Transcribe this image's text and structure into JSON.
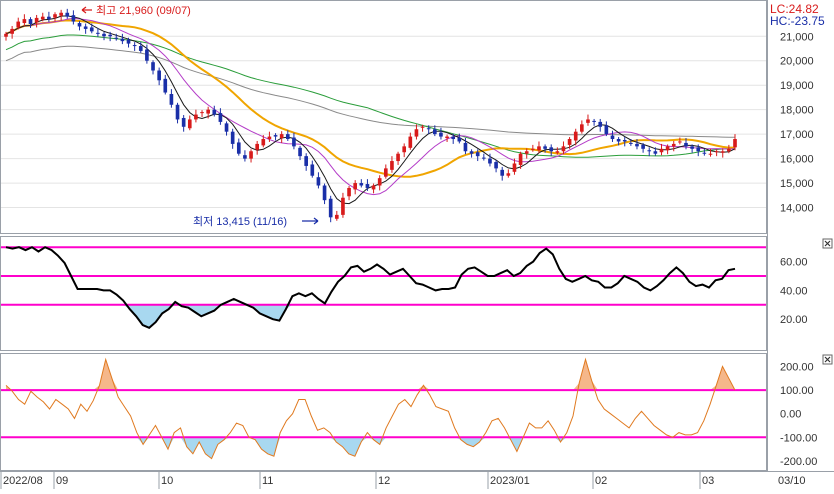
{
  "colors": {
    "up": "#d81b1b",
    "down": "#1a2fa8",
    "ma5": "#1a1a1a",
    "ma10": "#b43cc8",
    "ma20": "#f0a500",
    "ma60": "#2a9d3a",
    "ma120": "#8a8a8a",
    "band": "#ff00cc",
    "rsi_line": "#000000",
    "rsi_fill": "#a8d8f0",
    "cci_line": "#e07a20",
    "cci_fill_up": "#f5b78a",
    "cci_fill_down": "#a8d8f0",
    "lc": "#d81b1b",
    "hc": "#1a2fa8",
    "grid": "#e4e4e4"
  },
  "price_panel": {
    "lc_label": "LC:24.82",
    "hc_label": "HC:-23.75",
    "high_annotation": "최고 21,960 (09/07)",
    "low_annotation": "최저 13,415 (11/16)",
    "y_ticks": [
      "21,000",
      "20,000",
      "19,000",
      "18,000",
      "17,000",
      "16,000",
      "15,000",
      "14,000"
    ]
  },
  "rsi_panel": {
    "y_ticks": [
      "60.00",
      "40.00",
      "20.00"
    ],
    "close_icon": "x-icon"
  },
  "cci_panel": {
    "y_ticks": [
      "200.00",
      "100.00",
      "0.00",
      "-100.00",
      "-200.00"
    ],
    "close_icon": "x-icon"
  },
  "x_axis": {
    "labels": [
      "2022/08",
      "09",
      "10",
      "11",
      "12",
      "2023/01",
      "02",
      "03",
      "03/10"
    ]
  },
  "chart_data": [
    {
      "type": "candlestick",
      "panel": "price",
      "ylim": [
        13000,
        22400
      ],
      "high": {
        "value": 21960,
        "date": "09/07"
      },
      "low": {
        "value": 13415,
        "date": "11/16"
      },
      "close": [
        21100,
        21300,
        21600,
        21700,
        21500,
        21750,
        21800,
        21700,
        21900,
        21960,
        21800,
        21600,
        21400,
        21300,
        21200,
        21100,
        21000,
        21000,
        20900,
        20800,
        20700,
        20600,
        20400,
        20000,
        19600,
        19200,
        18700,
        18200,
        17600,
        17300,
        17600,
        17800,
        17900,
        18000,
        17800,
        17500,
        17100,
        16600,
        16200,
        16000,
        16300,
        16600,
        16800,
        16900,
        16900,
        17000,
        16800,
        16500,
        16100,
        15700,
        15300,
        14900,
        14300,
        13600,
        13700,
        14400,
        14800,
        15000,
        14900,
        14800,
        14900,
        15200,
        15600,
        15900,
        16200,
        16500,
        16900,
        17200,
        17300,
        17200,
        17000,
        16900,
        16900,
        16800,
        16700,
        16300,
        16200,
        16100,
        16000,
        15800,
        15600,
        15300,
        15400,
        15800,
        16200,
        16300,
        16400,
        16500,
        16400,
        16300,
        16300,
        16500,
        16800,
        17100,
        17400,
        17600,
        17500,
        17300,
        17000,
        16800,
        16700,
        16700,
        16600,
        16500,
        16400,
        16300,
        16200,
        16400,
        16500,
        16600,
        16700,
        16500,
        16400,
        16300,
        16200,
        16200,
        16300,
        16300,
        16400,
        16800
      ]
    },
    {
      "type": "line",
      "panel": "rsi",
      "ylim": [
        0,
        75
      ],
      "bands": [
        70,
        50,
        30
      ],
      "values": [
        70,
        69,
        70,
        68,
        70,
        67,
        70,
        68,
        64,
        59,
        50,
        41,
        41,
        41,
        41,
        40,
        40,
        37,
        33,
        27,
        22,
        16,
        14,
        18,
        24,
        27,
        32,
        29,
        28,
        25,
        22,
        24,
        26,
        30,
        32,
        34,
        32,
        30,
        28,
        24,
        22,
        20,
        19,
        27,
        36,
        38,
        36,
        38,
        34,
        31,
        39,
        46,
        50,
        56,
        57,
        53,
        55,
        58,
        55,
        51,
        53,
        55,
        50,
        45,
        44,
        42,
        40,
        41,
        41,
        42,
        51,
        55,
        56,
        53,
        50,
        50,
        52,
        54,
        50,
        52,
        57,
        60,
        66,
        69,
        65,
        55,
        48,
        46,
        48,
        50,
        47,
        46,
        42,
        42,
        45,
        50,
        48,
        46,
        42,
        40,
        43,
        47,
        52,
        56,
        52,
        46,
        43,
        44,
        42,
        47,
        48,
        54,
        55
      ]
    },
    {
      "type": "line",
      "panel": "cci",
      "ylim": [
        -230,
        240
      ],
      "bands": [
        100,
        -100
      ],
      "values": [
        120,
        95,
        60,
        40,
        95,
        70,
        50,
        20,
        60,
        40,
        20,
        -20,
        40,
        10,
        55,
        120,
        230,
        150,
        70,
        30,
        -10,
        -80,
        -130,
        -90,
        -50,
        -100,
        -150,
        -80,
        -60,
        -140,
        -170,
        -120,
        -170,
        -190,
        -130,
        -110,
        -80,
        -40,
        -50,
        -100,
        -110,
        -150,
        -170,
        -180,
        -80,
        -30,
        0,
        60,
        60,
        -10,
        -70,
        -60,
        -80,
        -120,
        -140,
        -170,
        -180,
        -120,
        -80,
        -110,
        -130,
        -60,
        -10,
        40,
        60,
        30,
        80,
        120,
        80,
        30,
        20,
        10,
        -60,
        -110,
        -130,
        -140,
        -120,
        -80,
        -30,
        -20,
        -60,
        -110,
        -160,
        -100,
        -40,
        -60,
        -60,
        -30,
        -70,
        -120,
        -80,
        -10,
        130,
        230,
        140,
        60,
        20,
        0,
        -20,
        -40,
        -60,
        -20,
        10,
        -20,
        -50,
        -70,
        -90,
        -100,
        -80,
        -90,
        -90,
        -80,
        -30,
        40,
        120,
        200,
        150,
        100
      ]
    }
  ]
}
